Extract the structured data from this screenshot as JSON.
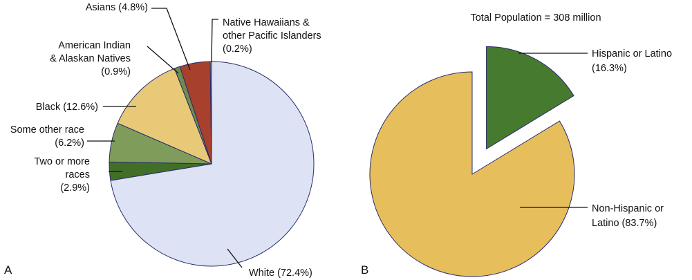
{
  "chart_data": [
    {
      "type": "pie",
      "panel_label": "A",
      "slices": [
        {
          "label_lines": [
            "White (72.4%)"
          ],
          "value": 72.4,
          "color": "#dde3f4"
        },
        {
          "label_lines": [
            "Two or more",
            "races",
            "(2.9%)"
          ],
          "value": 2.9,
          "color": "#426f28"
        },
        {
          "label_lines": [
            "Some other race",
            "(6.2%)"
          ],
          "value": 6.2,
          "color": "#7f9c5a"
        },
        {
          "label_lines": [
            "Black (12.6%)"
          ],
          "value": 12.6,
          "color": "#e8c978"
        },
        {
          "label_lines": [
            "American Indian",
            "& Alaskan Natives",
            "(0.9%)"
          ],
          "value": 0.9,
          "color": "#6f8c4e"
        },
        {
          "label_lines": [
            "Asians (4.8%)"
          ],
          "value": 4.8,
          "color": "#a8402e"
        },
        {
          "label_lines": [
            "Native Hawaiians &",
            "other Pacific Islanders",
            "(0.2%)"
          ],
          "value": 0.2,
          "color": "#c8a070"
        }
      ]
    },
    {
      "type": "pie",
      "panel_label": "B",
      "title": "Total Population = 308 million",
      "slices": [
        {
          "label_lines": [
            "Hispanic or Latino",
            "(16.3%)"
          ],
          "value": 16.3,
          "color": "#467a2e",
          "exploded": true
        },
        {
          "label_lines": [
            "Non-Hispanic or",
            "Latino (83.7%)"
          ],
          "value": 83.7,
          "color": "#e6be5c",
          "exploded": false
        }
      ]
    }
  ]
}
